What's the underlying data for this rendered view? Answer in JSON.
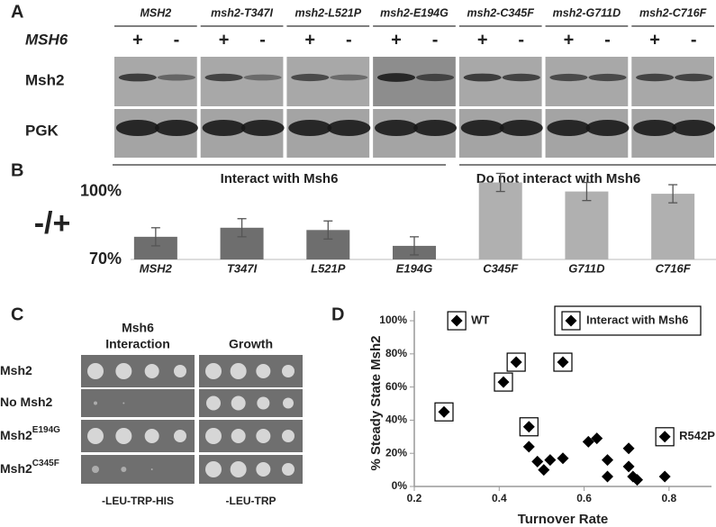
{
  "panel_labels": [
    "A",
    "B",
    "C",
    "D"
  ],
  "blot": {
    "columns": [
      "MSH2",
      "msh2-T347I",
      "msh2-L521P",
      "msh2-E194G",
      "msh2-C345F",
      "msh2-G711D",
      "msh2-C716F"
    ],
    "row_header": "MSH6",
    "signs": [
      "+",
      "-"
    ],
    "rows": [
      "Msh2",
      "PGK"
    ],
    "groups": [
      "Interact with Msh6",
      "Do not interact with Msh6"
    ]
  },
  "plates": {
    "columns": [
      {
        "title": [
          "Msh6",
          "Interaction"
        ],
        "medium": "-LEU-TRP-HIS"
      },
      {
        "title": [
          "Growth"
        ],
        "medium": "-LEU-TRP"
      }
    ],
    "rows": [
      {
        "name": "Msh2"
      },
      {
        "name": "No Msh2"
      },
      {
        "name": "Msh2",
        "sup": "E194G"
      },
      {
        "name": "Msh2",
        "sup": "C345F"
      }
    ]
  },
  "chart_data": [
    {
      "type": "bar",
      "y_label": "-/+",
      "categories": [
        "MSH2",
        "T347I",
        "L521P",
        "E194G",
        "C345F",
        "G711D",
        "C716F"
      ],
      "values": [
        80,
        84,
        83,
        76,
        104,
        100,
        99
      ],
      "errors": [
        4,
        4,
        4,
        4,
        4,
        4,
        4
      ],
      "colors": [
        "#6e6e6e",
        "#6e6e6e",
        "#6e6e6e",
        "#6e6e6e",
        "#b0b0b0",
        "#b0b0b0",
        "#b0b0b0"
      ],
      "ylim": [
        70,
        105
      ],
      "yticks": [
        {
          "value": 70,
          "label": "70%"
        },
        {
          "value": 100,
          "label": "100%"
        }
      ]
    },
    {
      "type": "scatter",
      "x_label": "Turnover Rate",
      "y_label": "% Steady State Msh2",
      "series": [
        {
          "name": "Interact with Msh6",
          "color": "#000000",
          "marker_box": true,
          "x": [
            0.3,
            0.27,
            0.41,
            0.44,
            0.47,
            0.55,
            0.79
          ],
          "values": [
            100,
            45,
            63,
            75,
            36,
            75,
            30
          ],
          "labels": [
            "WT",
            null,
            null,
            null,
            null,
            null,
            "R542P"
          ]
        },
        {
          "color": "#000000",
          "marker_box": false,
          "x": [
            0.47,
            0.49,
            0.505,
            0.52,
            0.55,
            0.61,
            0.63,
            0.655,
            0.655,
            0.705,
            0.705,
            0.715,
            0.725,
            0.79
          ],
          "values": [
            24,
            15,
            10,
            16,
            17,
            27,
            29,
            16,
            6,
            23,
            12,
            6,
            4,
            6
          ]
        }
      ],
      "xlim": [
        0.2,
        0.9
      ],
      "xticks": [
        0.2,
        0.4,
        0.6,
        0.8
      ],
      "ylim": [
        0,
        106
      ],
      "yticks": [
        {
          "value": 0,
          "label": "0%"
        },
        {
          "value": 20,
          "label": "20%"
        },
        {
          "value": 40,
          "label": "40%"
        },
        {
          "value": 60,
          "label": "60%"
        },
        {
          "value": 80,
          "label": "80%"
        },
        {
          "value": 100,
          "label": "100%"
        }
      ],
      "legend": "top-right"
    }
  ]
}
